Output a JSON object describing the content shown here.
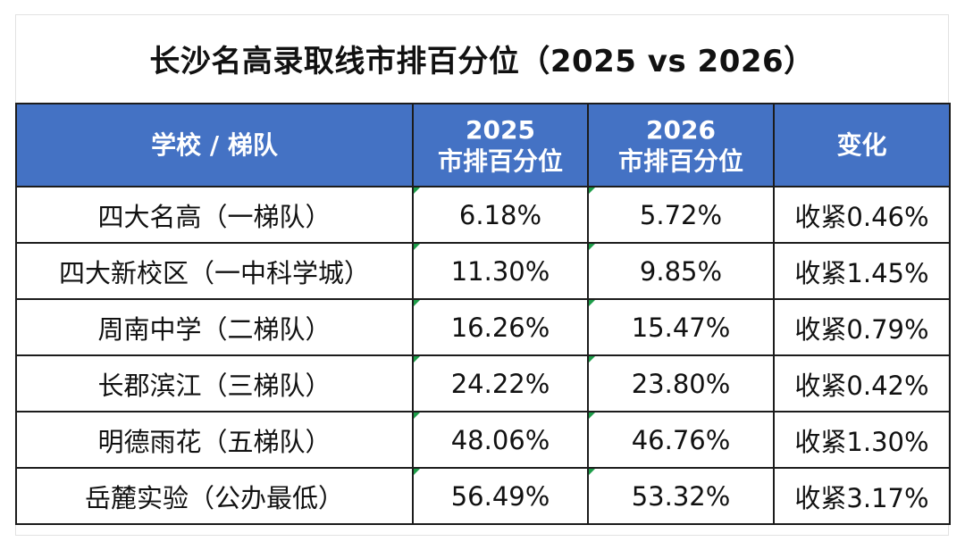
{
  "title": "长沙名高录取线市排百分位（2025 vs 2026）",
  "header": {
    "school": "学校 / 梯队",
    "col2025_year": "2025",
    "col2025_label": "市排百分位",
    "col2026_year": "2026",
    "col2026_label": "市排百分位",
    "change": "变化"
  },
  "rows": [
    {
      "school": "四大名高（一梯队）",
      "p2025": "6.18%",
      "p2026": "5.72%",
      "change": "收紧0.46%"
    },
    {
      "school": "四大新校区（一中科学城）",
      "p2025": "11.30%",
      "p2026": "9.85%",
      "change": "收紧1.45%"
    },
    {
      "school": "周南中学（二梯队）",
      "p2025": "16.26%",
      "p2026": "15.47%",
      "change": "收紧0.79%"
    },
    {
      "school": "长郡滨江（三梯队）",
      "p2025": "24.22%",
      "p2026": "23.80%",
      "change": "收紧0.42%"
    },
    {
      "school": "明德雨花（五梯队）",
      "p2025": "48.06%",
      "p2026": "46.76%",
      "change": "收紧1.30%"
    },
    {
      "school": "岳麓实验（公办最低）",
      "p2025": "56.49%",
      "p2026": "53.32%",
      "change": "收紧3.17%"
    }
  ],
  "colors": {
    "header_bg": "#4472c4",
    "header_text": "#ffffff",
    "cell_marker": "#1e9e4a"
  }
}
